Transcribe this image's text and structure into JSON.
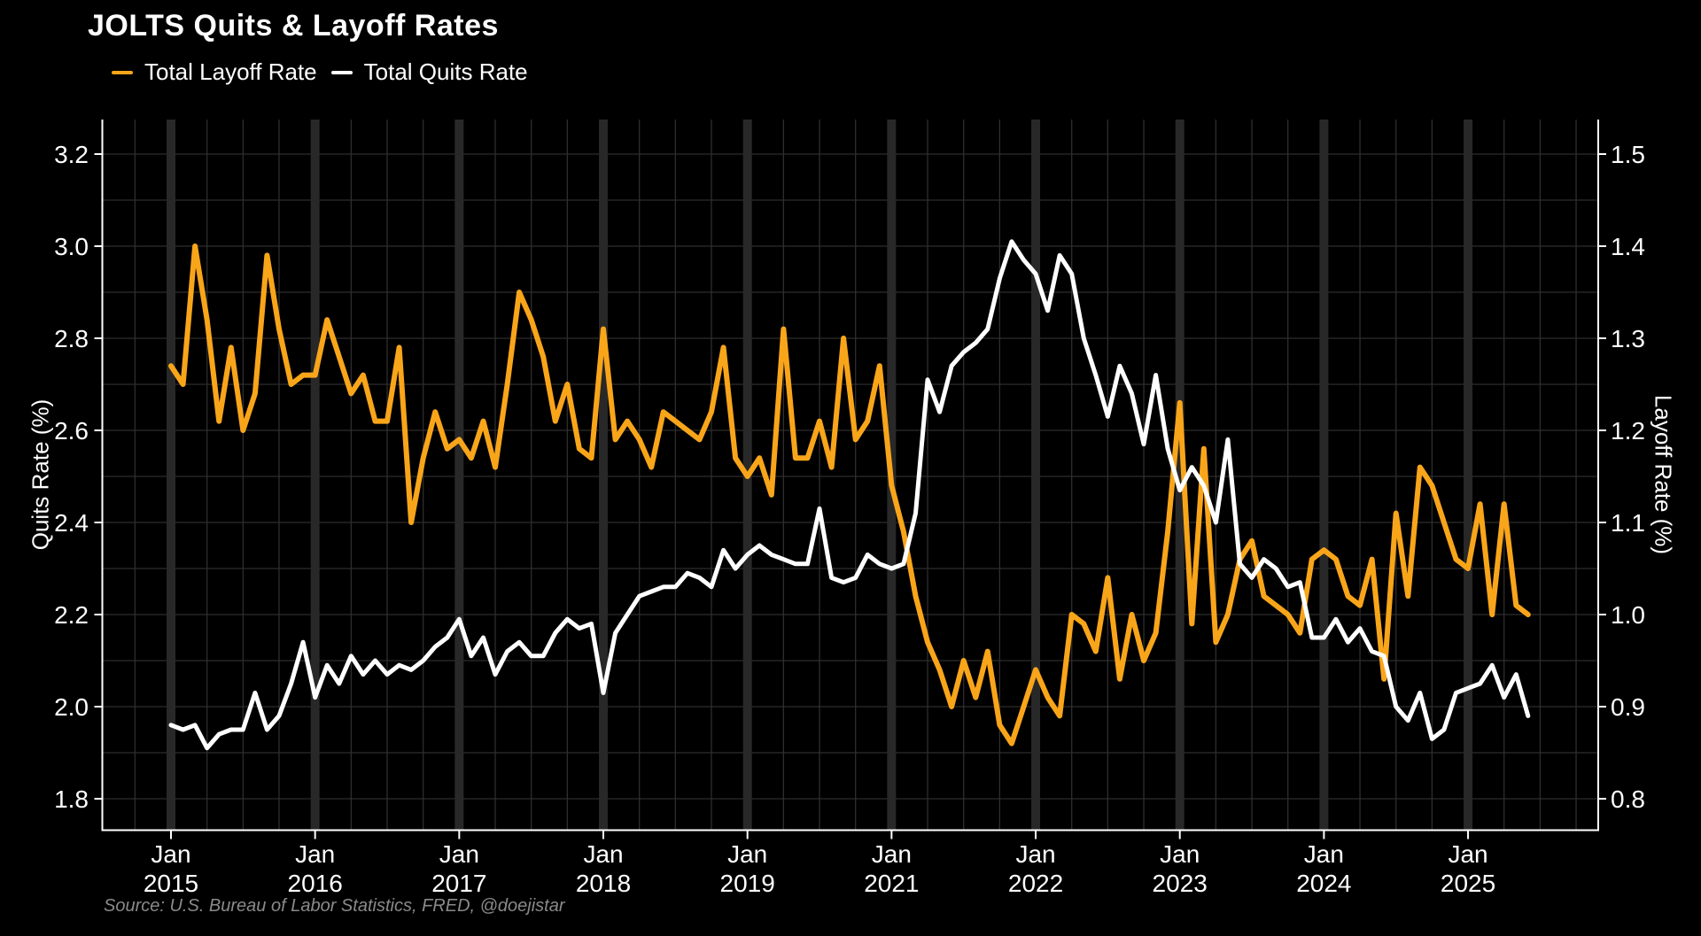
{
  "title": "JOLTS Quits & Layoff Rates",
  "source": "Source: U.S. Bureau of Labor Statistics, FRED, @doejistar",
  "colors": {
    "background": "#000000",
    "layoff_orange": "#F9A51A",
    "quits_white": "#FFFFFF",
    "gridline": "#2e2e2e",
    "january_band": "#282828",
    "axis": "#FFFFFF",
    "source_text": "#8a8a8a"
  },
  "legend": [
    {
      "label": "Total Layoff Rate",
      "color": "#F9A51A"
    },
    {
      "label": "Total Quits Rate",
      "color": "#FFFFFF"
    }
  ],
  "chart_data": {
    "type": "line",
    "title": "JOLTS Quits & Layoff Rates",
    "x_note": "Monthly data Jan 2015 - Jun 2025; all months of 2020 are omitted from the axis",
    "x_month_label": "Jan",
    "x_year_ticks": [
      "2015",
      "2016",
      "2017",
      "2018",
      "2019",
      "2021",
      "2022",
      "2023",
      "2024",
      "2025"
    ],
    "months_per_year": 12,
    "grid": "on",
    "legend_position": "top-left",
    "left_axis": {
      "label": "Quits Rate (%)",
      "tick_labels": [
        "3.2",
        "3.0",
        "2.8",
        "2.6",
        "2.4",
        "2.2",
        "2.0",
        "1.8"
      ],
      "tick_values": [
        3.2,
        3.0,
        2.8,
        2.6,
        2.4,
        2.2,
        2.0,
        1.8
      ],
      "gridline_step": 0.1,
      "range_top": 3.274,
      "range_bottom": 1.717
    },
    "right_axis": {
      "label": "Layoff Rate (%)",
      "tick_labels": [
        "1.5",
        "1.4",
        "1.3",
        "1.2",
        "1.1",
        "1.0",
        "0.9",
        "0.8"
      ],
      "tick_values": [
        1.5,
        1.4,
        1.3,
        1.2,
        1.1,
        1.0,
        0.9,
        0.8
      ],
      "gridline_step": 0.05,
      "range_top": 1.537,
      "range_bottom": 0.759
    },
    "series": [
      {
        "name": "Total Quits Rate",
        "axis": "left",
        "color": "#FFFFFF",
        "start": "2015-01",
        "end": "2025-06",
        "values": [
          1.96,
          1.95,
          1.96,
          1.91,
          1.94,
          1.95,
          1.95,
          2.03,
          1.95,
          1.98,
          2.05,
          2.14,
          2.02,
          2.09,
          2.05,
          2.11,
          2.07,
          2.1,
          2.07,
          2.09,
          2.08,
          2.1,
          2.13,
          2.15,
          2.19,
          2.11,
          2.15,
          2.07,
          2.12,
          2.14,
          2.11,
          2.11,
          2.16,
          2.19,
          2.17,
          2.18,
          2.03,
          2.16,
          2.2,
          2.24,
          2.25,
          2.26,
          2.26,
          2.29,
          2.28,
          2.26,
          2.34,
          2.3,
          2.33,
          2.35,
          2.33,
          2.32,
          2.31,
          2.31,
          2.43,
          2.28,
          2.27,
          2.28,
          2.33,
          2.31,
          2.3,
          2.31,
          2.42,
          2.71,
          2.64,
          2.74,
          2.77,
          2.79,
          2.82,
          2.93,
          3.01,
          2.97,
          2.94,
          2.86,
          2.98,
          2.94,
          2.8,
          2.72,
          2.63,
          2.74,
          2.68,
          2.57,
          2.72,
          2.56,
          2.47,
          2.52,
          2.48,
          2.4,
          2.58,
          2.31,
          2.28,
          2.32,
          2.3,
          2.26,
          2.27,
          2.15,
          2.15,
          2.19,
          2.14,
          2.17,
          2.12,
          2.11,
          2.0,
          1.97,
          2.03,
          1.93,
          1.95,
          2.03,
          2.04,
          2.05,
          2.09,
          2.02,
          2.07,
          1.98
        ]
      },
      {
        "name": "Total Layoff Rate",
        "axis": "right",
        "color": "#F9A51A",
        "start": "2015-01",
        "end": "2025-06",
        "values": [
          1.27,
          1.25,
          1.4,
          1.32,
          1.21,
          1.29,
          1.2,
          1.24,
          1.39,
          1.31,
          1.25,
          1.26,
          1.26,
          1.32,
          1.28,
          1.24,
          1.26,
          1.21,
          1.21,
          1.29,
          1.1,
          1.17,
          1.22,
          1.18,
          1.19,
          1.17,
          1.21,
          1.16,
          1.25,
          1.35,
          1.32,
          1.28,
          1.21,
          1.25,
          1.18,
          1.17,
          1.31,
          1.19,
          1.21,
          1.19,
          1.16,
          1.22,
          1.21,
          1.2,
          1.19,
          1.22,
          1.29,
          1.17,
          1.15,
          1.17,
          1.13,
          1.31,
          1.17,
          1.17,
          1.21,
          1.16,
          1.3,
          1.19,
          1.21,
          1.27,
          1.14,
          1.09,
          1.02,
          0.97,
          0.94,
          0.9,
          0.95,
          0.91,
          0.96,
          0.88,
          0.86,
          0.9,
          0.94,
          0.91,
          0.89,
          1.0,
          0.99,
          0.96,
          1.04,
          0.93,
          1.0,
          0.95,
          0.98,
          1.09,
          1.23,
          0.99,
          1.18,
          0.97,
          1.0,
          1.06,
          1.08,
          1.02,
          1.01,
          1.0,
          0.98,
          1.06,
          1.07,
          1.06,
          1.02,
          1.01,
          1.06,
          0.93,
          1.11,
          1.02,
          1.16,
          1.14,
          1.1,
          1.06,
          1.05,
          1.12,
          1.0,
          1.12,
          1.01,
          1.0
        ]
      }
    ]
  }
}
